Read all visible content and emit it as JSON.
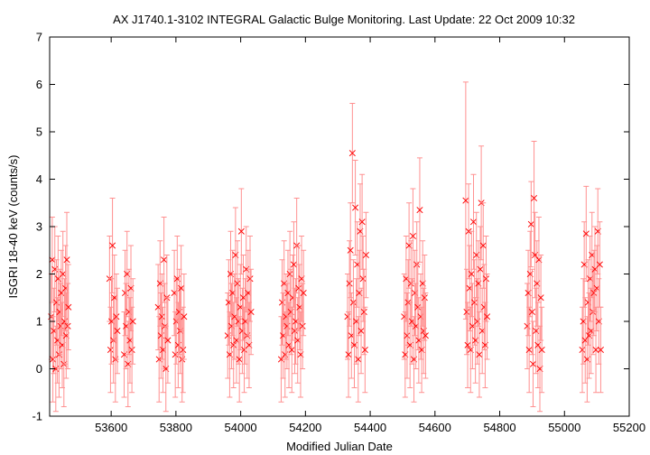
{
  "chart_data": {
    "type": "scatter",
    "title": "AX J1740.1-3102    INTEGRAL Galactic Bulge Monitoring.  Last Update: 22 Oct 2009 10:32",
    "xlabel": "Modified Julian Date",
    "ylabel": "ISGRI 18-40 keV (counts/s)",
    "xlim": [
      53410,
      55200
    ],
    "ylim": [
      -1,
      7
    ],
    "xticks": [
      53600,
      53800,
      54000,
      54200,
      54400,
      54600,
      54800,
      55000,
      55200
    ],
    "yticks": [
      -1,
      0,
      1,
      2,
      3,
      4,
      5,
      6,
      7
    ],
    "grid": false,
    "marker": "x",
    "color": "#ff0000",
    "error_color": "#ff9090",
    "series": [
      {
        "points": [
          [
            53415,
            1.1,
            0.9
          ],
          [
            53418,
            2.3,
            0.9
          ],
          [
            53420,
            0.2,
            0.9
          ],
          [
            53423,
            0.8,
            0.9
          ],
          [
            53426,
            2.1,
            0.9
          ],
          [
            53429,
            0.0,
            0.9
          ],
          [
            53431,
            1.4,
            0.9
          ],
          [
            53434,
            0.6,
            0.9
          ],
          [
            53436,
            1.9,
            0.9
          ],
          [
            53439,
            0.3,
            0.9
          ],
          [
            53441,
            1.2,
            0.9
          ],
          [
            53444,
            0.9,
            0.9
          ],
          [
            53446,
            1.6,
            0.9
          ],
          [
            53449,
            0.5,
            0.9
          ],
          [
            53451,
            2.0,
            0.9
          ],
          [
            53454,
            0.1,
            0.9
          ],
          [
            53456,
            1.0,
            0.9
          ],
          [
            53459,
            1.7,
            0.9
          ],
          [
            53461,
            0.7,
            0.9
          ],
          [
            53463,
            2.3,
            1.0
          ],
          [
            53466,
            0.9,
            0.9
          ],
          [
            53468,
            1.3,
            0.9
          ],
          [
            53595,
            1.9,
            0.9
          ],
          [
            53598,
            0.4,
            0.9
          ],
          [
            53601,
            1.0,
            0.9
          ],
          [
            53604,
            2.6,
            1.0
          ],
          [
            53607,
            0.6,
            0.9
          ],
          [
            53610,
            1.5,
            0.9
          ],
          [
            53613,
            0.2,
            0.9
          ],
          [
            53616,
            1.1,
            0.9
          ],
          [
            53619,
            0.8,
            0.9
          ],
          [
            53640,
            0.3,
            0.9
          ],
          [
            53643,
            1.6,
            0.9
          ],
          [
            53646,
            0.9,
            0.9
          ],
          [
            53649,
            2.0,
            0.9
          ],
          [
            53652,
            0.1,
            0.9
          ],
          [
            53655,
            1.2,
            0.9
          ],
          [
            53658,
            0.6,
            0.9
          ],
          [
            53661,
            1.7,
            0.9
          ],
          [
            53664,
            0.4,
            0.9
          ],
          [
            53667,
            1.0,
            0.9
          ],
          [
            53745,
            1.3,
            0.9
          ],
          [
            53748,
            0.2,
            0.9
          ],
          [
            53751,
            1.8,
            0.9
          ],
          [
            53754,
            0.7,
            0.9
          ],
          [
            53757,
            1.1,
            0.9
          ],
          [
            53760,
            0.4,
            0.9
          ],
          [
            53763,
            2.3,
            0.9
          ],
          [
            53766,
            0.9,
            0.9
          ],
          [
            53769,
            0.0,
            0.9
          ],
          [
            53772,
            1.5,
            0.9
          ],
          [
            53775,
            0.6,
            0.9
          ],
          [
            53795,
            1.6,
            0.9
          ],
          [
            53798,
            0.3,
            0.9
          ],
          [
            53801,
            1.0,
            0.9
          ],
          [
            53804,
            1.9,
            0.9
          ],
          [
            53807,
            0.5,
            0.9
          ],
          [
            53810,
            1.2,
            0.9
          ],
          [
            53813,
            0.8,
            0.9
          ],
          [
            53816,
            1.7,
            0.9
          ],
          [
            53819,
            0.2,
            0.9
          ],
          [
            53822,
            0.4,
            0.9
          ],
          [
            53825,
            1.1,
            0.9
          ],
          [
            53960,
            0.7,
            0.9
          ],
          [
            53963,
            1.4,
            0.9
          ],
          [
            53966,
            0.3,
            0.9
          ],
          [
            53969,
            2.0,
            0.9
          ],
          [
            53972,
            0.9,
            0.9
          ],
          [
            53975,
            1.6,
            0.9
          ],
          [
            53978,
            0.5,
            0.9
          ],
          [
            53981,
            1.1,
            0.9
          ],
          [
            53984,
            2.4,
            1.0
          ],
          [
            53987,
            0.6,
            0.9
          ],
          [
            53990,
            1.8,
            0.9
          ],
          [
            53993,
            1.0,
            0.9
          ],
          [
            53996,
            0.2,
            0.9
          ],
          [
            53999,
            1.3,
            0.9
          ],
          [
            54002,
            2.9,
            0.9
          ],
          [
            54005,
            0.8,
            0.9
          ],
          [
            54008,
            1.5,
            0.9
          ],
          [
            54011,
            0.4,
            0.9
          ],
          [
            54014,
            1.0,
            0.9
          ],
          [
            54017,
            2.1,
            0.9
          ],
          [
            54020,
            0.7,
            0.9
          ],
          [
            54023,
            1.6,
            0.9
          ],
          [
            54026,
            0.5,
            0.9
          ],
          [
            54029,
            1.9,
            0.9
          ],
          [
            54032,
            1.2,
            0.9
          ],
          [
            54125,
            0.2,
            0.9
          ],
          [
            54128,
            1.4,
            0.9
          ],
          [
            54131,
            0.7,
            0.9
          ],
          [
            54134,
            1.8,
            0.9
          ],
          [
            54137,
            0.3,
            0.9
          ],
          [
            54140,
            1.1,
            0.9
          ],
          [
            54143,
            0.9,
            0.9
          ],
          [
            54146,
            1.6,
            0.9
          ],
          [
            54149,
            0.5,
            0.9
          ],
          [
            54152,
            2.0,
            0.9
          ],
          [
            54155,
            1.2,
            0.9
          ],
          [
            54158,
            0.4,
            0.9
          ],
          [
            54161,
            1.5,
            0.9
          ],
          [
            54164,
            2.2,
            0.9
          ],
          [
            54167,
            0.8,
            0.9
          ],
          [
            54170,
            1.0,
            0.9
          ],
          [
            54173,
            2.6,
            1.0
          ],
          [
            54176,
            0.6,
            0.9
          ],
          [
            54179,
            1.7,
            0.9
          ],
          [
            54182,
            1.3,
            0.9
          ],
          [
            54185,
            0.3,
            0.9
          ],
          [
            54188,
            1.9,
            0.9
          ],
          [
            54191,
            0.9,
            0.9
          ],
          [
            54194,
            1.6,
            0.9
          ],
          [
            54330,
            1.1,
            0.9
          ],
          [
            54333,
            0.3,
            0.9
          ],
          [
            54336,
            1.8,
            0.9
          ],
          [
            54339,
            2.5,
            1.0
          ],
          [
            54342,
            0.7,
            0.9
          ],
          [
            54345,
            4.55,
            1.05
          ],
          [
            54348,
            1.4,
            0.9
          ],
          [
            54351,
            0.5,
            0.9
          ],
          [
            54354,
            3.4,
            1.0
          ],
          [
            54357,
            1.0,
            0.9
          ],
          [
            54360,
            2.2,
            0.9
          ],
          [
            54363,
            0.2,
            0.9
          ],
          [
            54366,
            1.6,
            0.9
          ],
          [
            54369,
            2.9,
            1.0
          ],
          [
            54372,
            0.8,
            0.9
          ],
          [
            54375,
            3.1,
            1.0
          ],
          [
            54378,
            1.9,
            0.9
          ],
          [
            54381,
            1.2,
            0.9
          ],
          [
            54384,
            0.4,
            0.9
          ],
          [
            54387,
            2.4,
            0.9
          ],
          [
            54505,
            1.1,
            0.9
          ],
          [
            54508,
            0.3,
            0.9
          ],
          [
            54511,
            1.9,
            0.9
          ],
          [
            54514,
            0.7,
            0.9
          ],
          [
            54517,
            1.4,
            0.9
          ],
          [
            54520,
            2.6,
            0.9
          ],
          [
            54523,
            0.5,
            0.9
          ],
          [
            54526,
            1.8,
            0.9
          ],
          [
            54529,
            1.0,
            0.9
          ],
          [
            54532,
            2.8,
            1.0
          ],
          [
            54535,
            0.2,
            0.9
          ],
          [
            54538,
            1.6,
            0.9
          ],
          [
            54541,
            0.9,
            0.9
          ],
          [
            54544,
            2.2,
            0.9
          ],
          [
            54547,
            1.3,
            0.9
          ],
          [
            54550,
            0.6,
            0.9
          ],
          [
            54553,
            3.35,
            1.1
          ],
          [
            54556,
            1.1,
            0.9
          ],
          [
            54559,
            0.4,
            0.9
          ],
          [
            54562,
            1.8,
            0.9
          ],
          [
            54565,
            0.8,
            0.9
          ],
          [
            54568,
            1.5,
            0.9
          ],
          [
            54571,
            0.7,
            0.9
          ],
          [
            54695,
            3.55,
            2.5
          ],
          [
            54698,
            1.2,
            0.9
          ],
          [
            54701,
            0.5,
            0.9
          ],
          [
            54704,
            2.9,
            1.0
          ],
          [
            54707,
            1.7,
            0.9
          ],
          [
            54710,
            0.4,
            0.9
          ],
          [
            54713,
            2.0,
            0.9
          ],
          [
            54716,
            0.9,
            0.9
          ],
          [
            54719,
            3.1,
            1.0
          ],
          [
            54722,
            1.4,
            0.9
          ],
          [
            54725,
            0.6,
            0.9
          ],
          [
            54728,
            2.4,
            0.9
          ],
          [
            54731,
            1.0,
            0.9
          ],
          [
            54734,
            1.8,
            0.9
          ],
          [
            54737,
            0.3,
            0.9
          ],
          [
            54740,
            2.1,
            0.9
          ],
          [
            54743,
            3.5,
            1.2
          ],
          [
            54746,
            0.8,
            0.9
          ],
          [
            54749,
            2.6,
            0.9
          ],
          [
            54752,
            1.3,
            0.9
          ],
          [
            54755,
            0.5,
            0.9
          ],
          [
            54758,
            1.9,
            0.9
          ],
          [
            54761,
            1.1,
            0.9
          ],
          [
            54885,
            0.9,
            0.9
          ],
          [
            54888,
            1.6,
            0.9
          ],
          [
            54891,
            0.4,
            0.9
          ],
          [
            54894,
            2.0,
            0.9
          ],
          [
            54897,
            3.05,
            0.9
          ],
          [
            54900,
            1.2,
            0.9
          ],
          [
            54903,
            0.1,
            0.9
          ],
          [
            54906,
            3.6,
            1.2
          ],
          [
            54909,
            2.4,
            0.9
          ],
          [
            54912,
            0.8,
            0.9
          ],
          [
            54915,
            1.8,
            0.9
          ],
          [
            54918,
            0.5,
            0.9
          ],
          [
            54921,
            2.3,
            0.9
          ],
          [
            54924,
            0.0,
            0.9
          ],
          [
            54927,
            1.5,
            0.9
          ],
          [
            54930,
            0.4,
            0.9
          ],
          [
            55055,
            0.4,
            0.9
          ],
          [
            55058,
            1.0,
            0.9
          ],
          [
            55061,
            2.2,
            0.9
          ],
          [
            55064,
            0.6,
            0.9
          ],
          [
            55067,
            2.85,
            1.0
          ],
          [
            55070,
            0.2,
            0.9
          ],
          [
            55073,
            1.4,
            0.9
          ],
          [
            55076,
            0.7,
            0.9
          ],
          [
            55079,
            1.9,
            0.9
          ],
          [
            55082,
            0.8,
            0.9
          ],
          [
            55085,
            2.4,
            0.9
          ],
          [
            55088,
            1.2,
            0.9
          ],
          [
            55091,
            1.6,
            0.9
          ],
          [
            55094,
            2.1,
            0.9
          ],
          [
            55097,
            0.4,
            0.9
          ],
          [
            55100,
            1.7,
            0.9
          ],
          [
            55103,
            2.9,
            0.9
          ],
          [
            55106,
            1.0,
            0.9
          ],
          [
            55109,
            2.2,
            0.9
          ],
          [
            55112,
            0.4,
            0.9
          ]
        ]
      }
    ]
  }
}
